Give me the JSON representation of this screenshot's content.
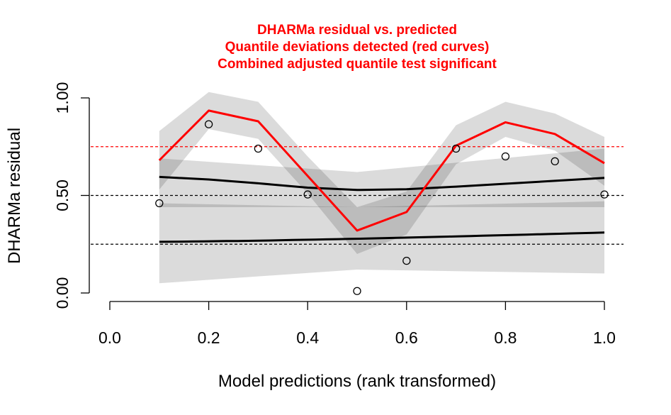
{
  "chart_data": {
    "type": "scatter",
    "title_lines": [
      "DHARMa residual vs. predicted",
      "Quantile deviations detected (red curves)",
      "Combined adjusted quantile test significant"
    ],
    "xlabel": "Model predictions (rank transformed)",
    "ylabel": "DHARMa residual",
    "xlim": [
      0.0,
      1.0
    ],
    "ylim": [
      0.0,
      1.0
    ],
    "x_ticks": [
      "0.0",
      "0.2",
      "0.4",
      "0.6",
      "0.8",
      "1.0"
    ],
    "x_tick_values": [
      0.0,
      0.2,
      0.4,
      0.6,
      0.8,
      1.0
    ],
    "y_ticks": [
      "0.00",
      "0.50",
      "1.00"
    ],
    "y_tick_values": [
      0.0,
      0.5,
      1.0
    ],
    "reference_lines": [
      {
        "y": 0.25,
        "color": "#000000",
        "style": "dashed"
      },
      {
        "y": 0.5,
        "color": "#000000",
        "style": "dashed"
      },
      {
        "y": 0.75,
        "color": "#ff0000",
        "style": "dashed"
      }
    ],
    "points": {
      "x": [
        0.1,
        0.2,
        0.3,
        0.4,
        0.5,
        0.6,
        0.7,
        0.8,
        0.9,
        1.0
      ],
      "y": [
        0.46,
        0.865,
        0.74,
        0.505,
        0.01,
        0.165,
        0.74,
        0.7,
        0.675,
        0.505
      ]
    },
    "bands": [
      {
        "name": "q25",
        "x": [
          0.1,
          0.5,
          1.0
        ],
        "upper": [
          0.46,
          0.44,
          0.47
        ],
        "lower": [
          0.05,
          0.12,
          0.1
        ]
      },
      {
        "name": "q50",
        "x": [
          0.1,
          0.5,
          1.0
        ],
        "upper": [
          0.69,
          0.62,
          0.74
        ],
        "lower": [
          0.44,
          0.44,
          0.44
        ]
      },
      {
        "name": "q75",
        "x": [
          0.1,
          0.2,
          0.3,
          0.4,
          0.5,
          0.6,
          0.7,
          0.8,
          0.9,
          1.0
        ],
        "upper": [
          0.83,
          1.03,
          0.98,
          0.7,
          0.44,
          0.52,
          0.86,
          0.98,
          0.92,
          0.8
        ],
        "lower": [
          0.53,
          0.84,
          0.79,
          0.51,
          0.2,
          0.3,
          0.66,
          0.8,
          0.73,
          0.55
        ]
      }
    ],
    "quantile_lines": [
      {
        "name": "q25",
        "color": "#000000",
        "x": [
          0.1,
          0.3,
          0.5,
          0.7,
          0.9,
          1.0
        ],
        "y": [
          0.262,
          0.268,
          0.278,
          0.29,
          0.303,
          0.31
        ]
      },
      {
        "name": "q50",
        "color": "#000000",
        "x": [
          0.1,
          0.2,
          0.3,
          0.4,
          0.5,
          0.6,
          0.7,
          0.8,
          0.9,
          1.0
        ],
        "y": [
          0.595,
          0.582,
          0.562,
          0.54,
          0.528,
          0.532,
          0.545,
          0.56,
          0.575,
          0.59
        ]
      },
      {
        "name": "q75",
        "color": "#ff0000",
        "x": [
          0.1,
          0.2,
          0.3,
          0.4,
          0.5,
          0.6,
          0.7,
          0.8,
          0.9,
          1.0
        ],
        "y": [
          0.68,
          0.935,
          0.88,
          0.6,
          0.32,
          0.415,
          0.755,
          0.875,
          0.815,
          0.665
        ]
      }
    ],
    "grid": false
  }
}
